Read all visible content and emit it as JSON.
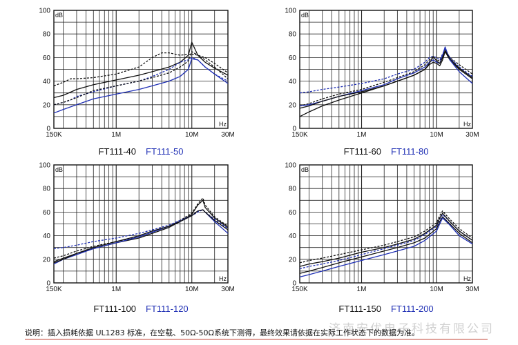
{
  "watermark_text": "济南安优电子科技有限公司",
  "footnote": "说明：插入损耗依据 UL1283 标准，在空载、50Ω-50Ω系统下测得，最终效果请依据在实际工作状态下的数据为准。",
  "colors": {
    "black": "#111111",
    "blue": "#1f2fb4"
  },
  "chart_data": [
    {
      "type": "line",
      "ylabel": "dB",
      "xlabel": "Hz",
      "ylim": [
        0,
        100
      ],
      "xlim_hz": [
        150000,
        30000000
      ],
      "x_scale": "log",
      "y_ticks": [
        "0",
        "20",
        "40",
        "60",
        "80",
        "100"
      ],
      "x_ticks": [
        {
          "v": 150000,
          "label": "150K"
        },
        {
          "v": 1000000,
          "label": "1M"
        },
        {
          "v": 10000000,
          "label": "10M"
        },
        {
          "v": 30000000,
          "label": "30M"
        }
      ],
      "captions": [
        {
          "text": "FT111-40",
          "color": "black"
        },
        {
          "text": "FT111-50",
          "color": "blue"
        }
      ],
      "series": [
        {
          "color": "black",
          "dash": false,
          "x": [
            0.15,
            0.2,
            0.3,
            0.5,
            1,
            2,
            3,
            5,
            7,
            9,
            10,
            12,
            15,
            20,
            30
          ],
          "y": [
            26,
            28,
            33,
            37,
            41,
            45,
            48,
            52,
            56,
            62,
            73,
            62,
            56,
            51,
            45
          ]
        },
        {
          "color": "black",
          "dash": true,
          "x": [
            0.15,
            0.2,
            0.25,
            0.3,
            0.5,
            1,
            2,
            3,
            4,
            5,
            7,
            10,
            12,
            15,
            20,
            30
          ],
          "y": [
            36,
            39,
            42,
            42,
            43,
            46,
            52,
            60,
            64,
            64,
            62,
            63,
            62,
            60,
            55,
            47
          ]
        },
        {
          "color": "blue",
          "dash": false,
          "x": [
            0.15,
            0.2,
            0.3,
            0.5,
            1,
            2,
            3,
            5,
            7,
            9,
            10,
            12,
            15,
            20,
            30
          ],
          "y": [
            13,
            16,
            20,
            25,
            29,
            33,
            36,
            40,
            44,
            50,
            59,
            58,
            52,
            46,
            38
          ]
        },
        {
          "color": "blue",
          "dash": true,
          "x": [
            0.15,
            0.2,
            0.25,
            0.3,
            0.5,
            1,
            2,
            3,
            5,
            7,
            9,
            10,
            12,
            15,
            20,
            30
          ],
          "y": [
            20,
            22,
            24,
            27,
            31,
            36,
            40,
            44,
            50,
            56,
            58,
            60,
            58,
            52,
            46,
            40
          ]
        },
        {
          "color": "black",
          "dash": true,
          "x": [
            0.15,
            0.2,
            0.3,
            0.5,
            1,
            2,
            3,
            5,
            7,
            9,
            10,
            12,
            15,
            20,
            30
          ],
          "y": [
            20,
            22,
            26,
            32,
            36,
            40,
            43,
            47,
            52,
            57,
            65,
            62,
            58,
            52,
            42
          ]
        }
      ]
    },
    {
      "type": "line",
      "ylabel": "dB",
      "xlabel": "Hz",
      "ylim": [
        0,
        100
      ],
      "xlim_hz": [
        150000,
        30000000
      ],
      "x_scale": "log",
      "y_ticks": [
        "0",
        "20",
        "40",
        "60",
        "80",
        "100"
      ],
      "x_ticks": [
        {
          "v": 150000,
          "label": "150K"
        },
        {
          "v": 1000000,
          "label": "1M"
        },
        {
          "v": 10000000,
          "label": "10M"
        },
        {
          "v": 30000000,
          "label": "30M"
        }
      ],
      "captions": [
        {
          "text": "FT111-60",
          "color": "black"
        },
        {
          "text": "FT111-80",
          "color": "blue"
        }
      ],
      "series": [
        {
          "color": "black",
          "dash": false,
          "x": [
            0.15,
            0.2,
            0.3,
            0.5,
            1,
            2,
            3,
            5,
            7,
            8,
            9,
            10,
            11,
            12,
            13,
            15,
            20,
            30
          ],
          "y": [
            10,
            14,
            19,
            24,
            30,
            36,
            40,
            45,
            50,
            54,
            56,
            55,
            53,
            58,
            65,
            58,
            50,
            42
          ]
        },
        {
          "color": "black",
          "dash": true,
          "x": [
            0.15,
            0.2,
            0.3,
            0.5,
            1,
            2,
            3,
            5,
            7,
            8,
            9,
            10,
            11,
            12,
            13,
            15,
            20,
            30
          ],
          "y": [
            19,
            21,
            25,
            29,
            33,
            39,
            43,
            48,
            54,
            58,
            60,
            58,
            57,
            62,
            66,
            60,
            54,
            46
          ]
        },
        {
          "color": "blue",
          "dash": false,
          "x": [
            0.15,
            0.2,
            0.3,
            0.5,
            1,
            2,
            3,
            5,
            7,
            8,
            9,
            10,
            11,
            12,
            13,
            15,
            20,
            30
          ],
          "y": [
            19,
            20,
            23,
            27,
            32,
            37,
            42,
            47,
            52,
            56,
            58,
            56,
            55,
            62,
            69,
            58,
            48,
            38
          ]
        },
        {
          "color": "blue",
          "dash": true,
          "x": [
            0.15,
            0.2,
            0.3,
            0.5,
            1,
            2,
            3,
            5,
            7,
            8,
            9,
            10,
            11,
            12,
            13,
            15,
            20,
            30
          ],
          "y": [
            30,
            31,
            33,
            35,
            38,
            42,
            46,
            50,
            56,
            60,
            61,
            60,
            58,
            63,
            67,
            60,
            52,
            44
          ]
        },
        {
          "color": "black",
          "dash": false,
          "x": [
            0.15,
            0.2,
            0.3,
            0.5,
            1,
            2,
            3,
            5,
            7,
            8,
            9,
            10,
            11,
            12,
            13,
            15,
            20,
            30
          ],
          "y": [
            17,
            19,
            23,
            27,
            31,
            36,
            40,
            45,
            50,
            55,
            61,
            57,
            55,
            60,
            66,
            59,
            51,
            43
          ]
        }
      ]
    },
    {
      "type": "line",
      "ylabel": "dB",
      "xlabel": "Hz",
      "ylim": [
        0,
        100
      ],
      "xlim_hz": [
        150000,
        30000000
      ],
      "x_scale": "log",
      "y_ticks": [
        "0",
        "20",
        "40",
        "60",
        "80",
        "100"
      ],
      "x_ticks": [
        {
          "v": 150000,
          "label": "150K"
        },
        {
          "v": 1000000,
          "label": "1M"
        },
        {
          "v": 10000000,
          "label": "10M"
        },
        {
          "v": 30000000,
          "label": "30M"
        }
      ],
      "captions": [
        {
          "text": "FT111-100",
          "color": "black"
        },
        {
          "text": "FT111-120",
          "color": "blue"
        }
      ],
      "series": [
        {
          "color": "black",
          "dash": false,
          "x": [
            0.15,
            0.2,
            0.3,
            0.5,
            1,
            2,
            3,
            5,
            7,
            10,
            12,
            14,
            15,
            20,
            30
          ],
          "y": [
            18,
            21,
            25,
            29,
            34,
            38,
            42,
            47,
            52,
            58,
            66,
            70,
            64,
            55,
            47
          ]
        },
        {
          "color": "black",
          "dash": true,
          "x": [
            0.15,
            0.2,
            0.3,
            0.5,
            1,
            2,
            3,
            5,
            7,
            10,
            12,
            14,
            15,
            20,
            30
          ],
          "y": [
            21,
            23,
            27,
            31,
            35,
            39,
            43,
            48,
            53,
            59,
            67,
            72,
            66,
            56,
            48
          ]
        },
        {
          "color": "blue",
          "dash": false,
          "x": [
            0.15,
            0.2,
            0.3,
            0.5,
            1,
            2,
            3,
            5,
            7,
            10,
            12,
            14,
            15,
            20,
            30
          ],
          "y": [
            16,
            20,
            24,
            29,
            34,
            39,
            43,
            48,
            52,
            57,
            61,
            62,
            60,
            52,
            42
          ]
        },
        {
          "color": "blue",
          "dash": true,
          "x": [
            0.15,
            0.2,
            0.3,
            0.5,
            1,
            2,
            3,
            5,
            7,
            10,
            12,
            14,
            15,
            20,
            30
          ],
          "y": [
            29,
            30,
            32,
            35,
            38,
            42,
            45,
            49,
            53,
            57,
            60,
            62,
            60,
            54,
            46
          ]
        },
        {
          "color": "black",
          "dash": false,
          "x": [
            0.15,
            0.2,
            0.3,
            0.5,
            1,
            2,
            3,
            5,
            7,
            10,
            12,
            14,
            15,
            20,
            30
          ],
          "y": [
            17,
            20,
            25,
            30,
            35,
            40,
            44,
            48,
            52,
            57,
            61,
            62,
            60,
            53,
            45
          ]
        }
      ]
    },
    {
      "type": "line",
      "ylabel": "dB",
      "xlabel": "Hz",
      "ylim": [
        0,
        100
      ],
      "xlim_hz": [
        150000,
        30000000
      ],
      "x_scale": "log",
      "y_ticks": [
        "0",
        "20",
        "40",
        "60",
        "80",
        "100"
      ],
      "x_ticks": [
        {
          "v": 150000,
          "label": "150K"
        },
        {
          "v": 1000000,
          "label": "1M"
        },
        {
          "v": 10000000,
          "label": "10M"
        },
        {
          "v": 30000000,
          "label": "30M"
        }
      ],
      "captions": [
        {
          "text": "FT111-150",
          "color": "black"
        },
        {
          "text": "FT111-200",
          "color": "blue"
        }
      ],
      "series": [
        {
          "color": "black",
          "dash": false,
          "x": [
            0.15,
            0.2,
            0.3,
            0.5,
            1,
            2,
            3,
            5,
            7,
            10,
            11,
            12,
            15,
            20,
            30
          ],
          "y": [
            8,
            10,
            13,
            17,
            22,
            27,
            30,
            34,
            38,
            46,
            52,
            56,
            50,
            42,
            34
          ]
        },
        {
          "color": "black",
          "dash": true,
          "x": [
            0.15,
            0.2,
            0.3,
            0.5,
            1,
            2,
            3,
            5,
            7,
            10,
            11,
            12,
            15,
            20,
            30
          ],
          "y": [
            17,
            19,
            21,
            24,
            28,
            32,
            35,
            39,
            44,
            51,
            57,
            61,
            54,
            46,
            38
          ]
        },
        {
          "color": "blue",
          "dash": false,
          "x": [
            0.15,
            0.2,
            0.3,
            0.5,
            1,
            2,
            3,
            5,
            7,
            10,
            11,
            12,
            15,
            20,
            30
          ],
          "y": [
            5,
            7,
            10,
            14,
            19,
            24,
            27,
            31,
            36,
            44,
            50,
            55,
            49,
            40,
            33
          ]
        },
        {
          "color": "blue",
          "dash": true,
          "x": [
            0.15,
            0.2,
            0.3,
            0.5,
            1,
            2,
            3,
            5,
            7,
            10,
            11,
            12,
            15,
            20,
            30
          ],
          "y": [
            12,
            14,
            16,
            19,
            24,
            29,
            32,
            36,
            41,
            48,
            54,
            58,
            52,
            44,
            36
          ]
        },
        {
          "color": "black",
          "dash": false,
          "x": [
            0.15,
            0.2,
            0.3,
            0.5,
            1,
            2,
            3,
            5,
            7,
            10,
            11,
            12,
            15,
            20,
            30
          ],
          "y": [
            14,
            16,
            18,
            21,
            26,
            30,
            33,
            37,
            42,
            49,
            55,
            59,
            52,
            44,
            36
          ]
        }
      ]
    }
  ]
}
